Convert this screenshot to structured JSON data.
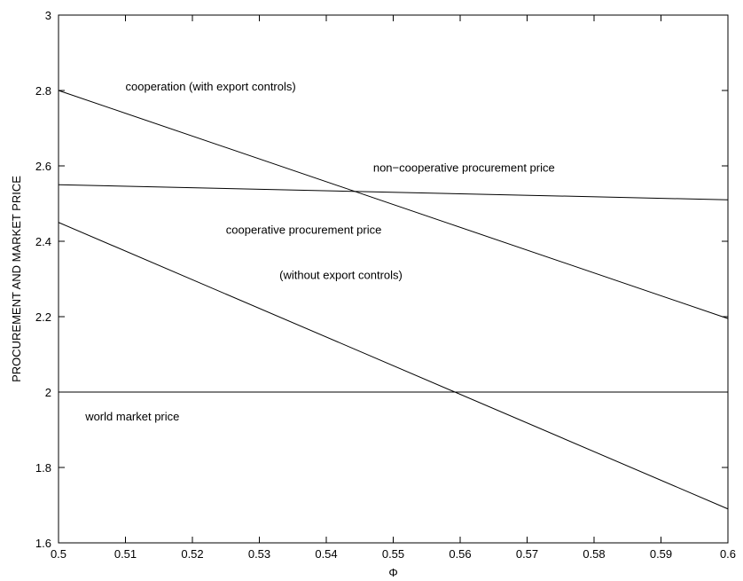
{
  "chart_data": {
    "type": "line",
    "xlabel": "Φ",
    "ylabel": "PROCUREMENT AND MARKET PRICE",
    "xlim": [
      0.5,
      0.6
    ],
    "ylim": [
      1.6,
      3.0
    ],
    "x_ticks": [
      "0.5",
      "0.51",
      "0.52",
      "0.53",
      "0.54",
      "0.55",
      "0.56",
      "0.57",
      "0.58",
      "0.59",
      "0.6"
    ],
    "y_ticks": [
      "1.6",
      "1.8",
      "2",
      "2.2",
      "2.4",
      "2.6",
      "2.8",
      "3"
    ],
    "grid": false,
    "series": [
      {
        "x": [
          0.5,
          0.6
        ],
        "values": [
          2.8,
          2.195
        ]
      },
      {
        "x": [
          0.5,
          0.6
        ],
        "values": [
          2.55,
          2.51
        ]
      },
      {
        "x": [
          0.5,
          0.6
        ],
        "values": [
          2.45,
          1.69
        ]
      },
      {
        "x": [
          0.5,
          0.6
        ],
        "values": [
          2.0,
          2.0
        ]
      }
    ],
    "annotations": [
      {
        "text": "cooperation (with export controls)",
        "x": 0.51,
        "y": 2.8
      },
      {
        "text": "non−cooperative procurement price",
        "x": 0.547,
        "y": 2.585
      },
      {
        "text": "cooperative procurement price",
        "x": 0.525,
        "y": 2.42
      },
      {
        "text": "(without export controls)",
        "x": 0.533,
        "y": 2.3
      },
      {
        "text": "world market price",
        "x": 0.504,
        "y": 1.925
      }
    ],
    "line_color": "#000000"
  }
}
